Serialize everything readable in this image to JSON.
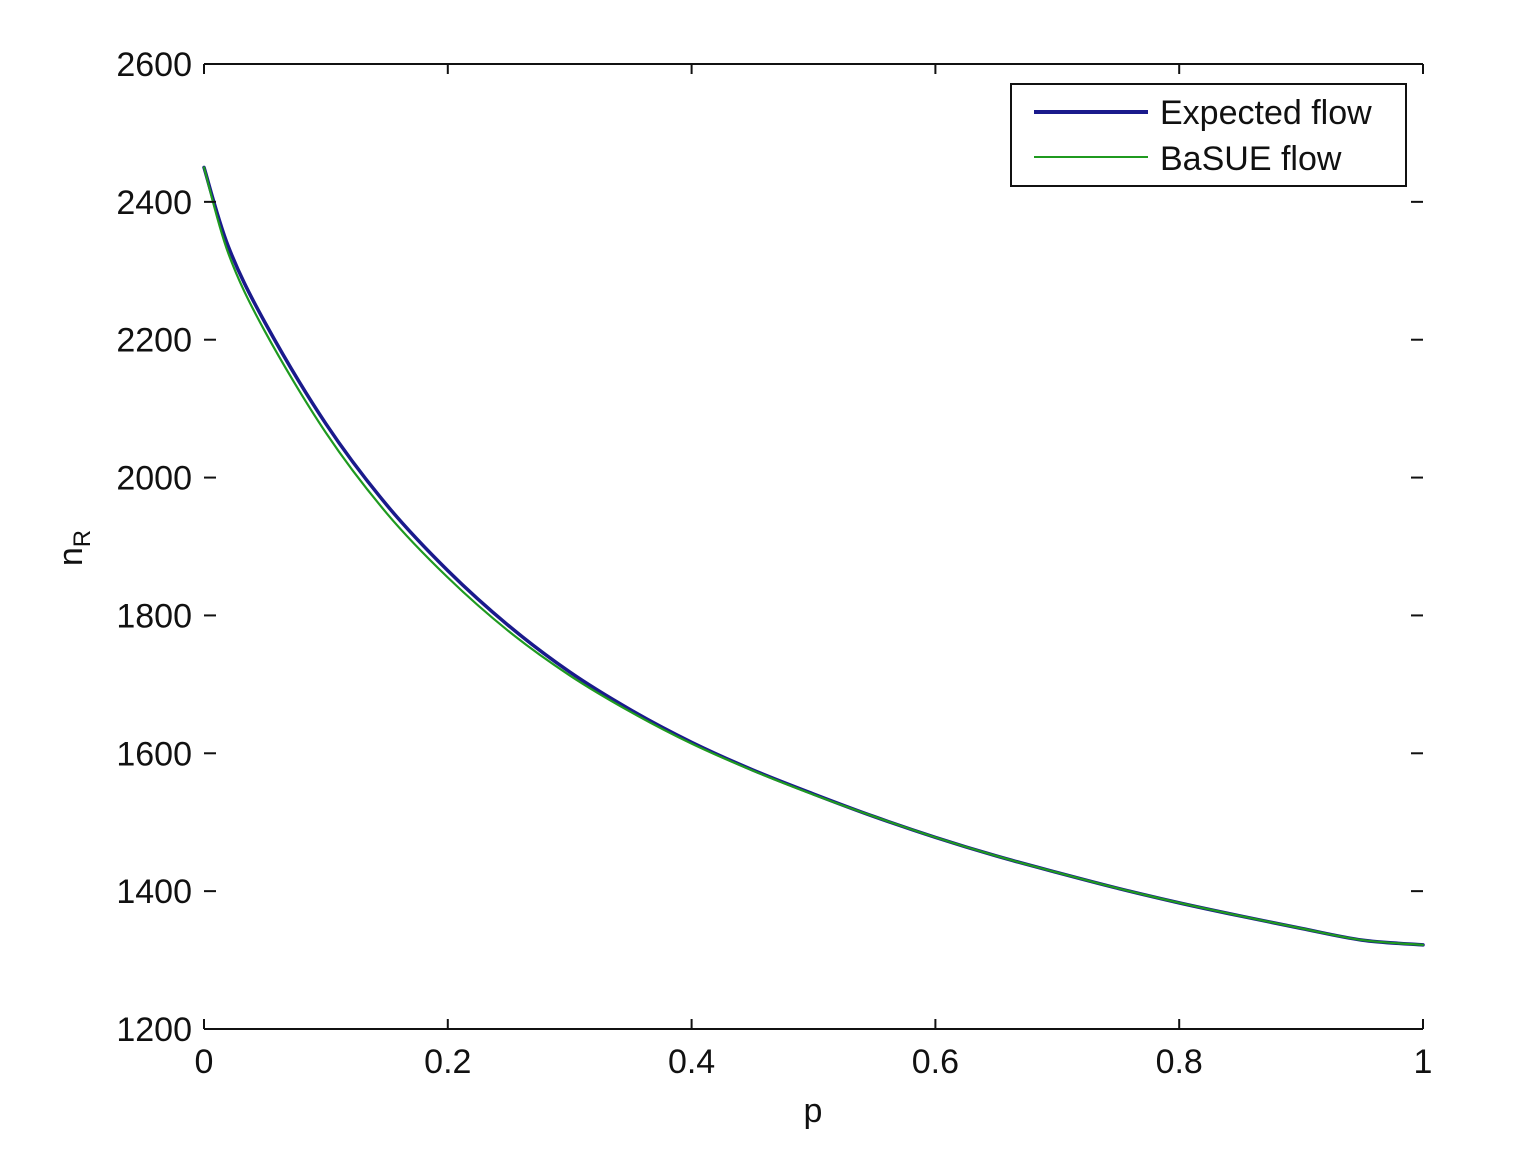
{
  "chart_data": {
    "type": "line",
    "title": "",
    "xlabel": "p",
    "ylabel": "n",
    "ylabel_subscript": "R",
    "xlim": [
      0,
      1
    ],
    "ylim": [
      1200,
      2600
    ],
    "xticks": [
      0,
      0.2,
      0.4,
      0.6,
      0.8,
      1
    ],
    "xtick_labels": [
      "0",
      "0.2",
      "0.4",
      "0.6",
      "0.8",
      "1"
    ],
    "yticks": [
      1200,
      1400,
      1600,
      1800,
      2000,
      2200,
      2400,
      2600
    ],
    "ytick_labels": [
      "1200",
      "1400",
      "1600",
      "1800",
      "2000",
      "2200",
      "2400",
      "2600"
    ],
    "grid": false,
    "legend_position": "top-right",
    "x": [
      0,
      0.02,
      0.05,
      0.1,
      0.15,
      0.2,
      0.25,
      0.3,
      0.35,
      0.4,
      0.45,
      0.5,
      0.55,
      0.6,
      0.65,
      0.7,
      0.75,
      0.8,
      0.85,
      0.9,
      0.95,
      1.0
    ],
    "series": [
      {
        "name": "Expected flow",
        "color": "#1a1a8c",
        "values": [
          2450,
          2335,
          2225,
          2078,
          1960,
          1865,
          1785,
          1718,
          1663,
          1616,
          1576,
          1541,
          1508,
          1478,
          1451,
          1427,
          1404,
          1383,
          1364,
          1346,
          1329,
          1322
        ]
      },
      {
        "name": "BaSUE flow",
        "color": "#1f9a1f",
        "values": [
          2450,
          2325,
          2212,
          2065,
          1948,
          1855,
          1777,
          1713,
          1660,
          1614,
          1575,
          1540,
          1508,
          1478,
          1451,
          1427,
          1404,
          1383,
          1364,
          1346,
          1329,
          1322
        ]
      }
    ]
  }
}
